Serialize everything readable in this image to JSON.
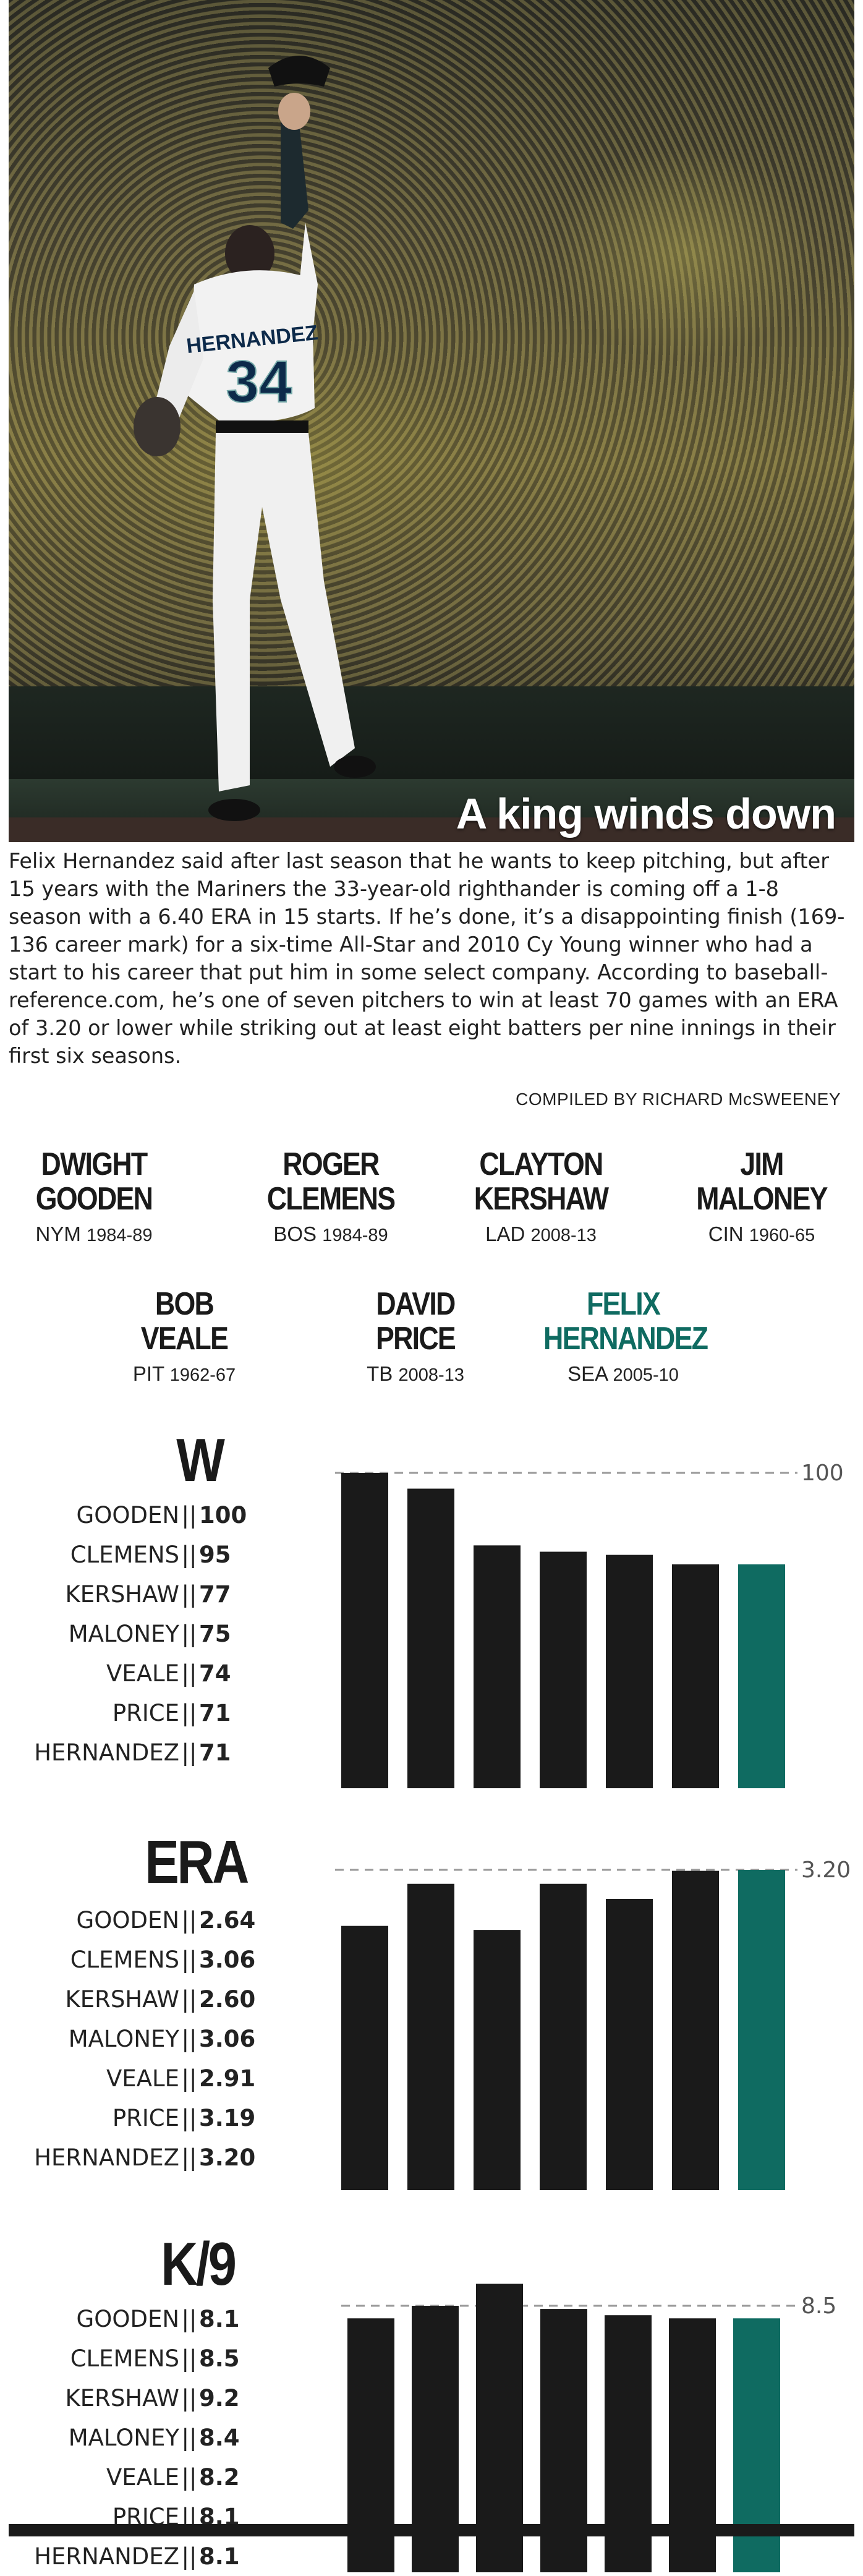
{
  "header": {
    "title": "A king winds down",
    "intro": "Felix Hernandez said after last season that he wants to keep pitching, but after 15 years with the Mariners the 33-year-old righthander is coming off a 1-8 season with a 6.40 ERA in 15 starts. If he’s done, it’s a disappointing finish (169-136 career mark) for a six-time All-Star and 2010 Cy Young winner who had a start to his career that put him in some select company. According to baseball-reference.com, he’s one of seven pitchers to win at least 70 games with an ERA of 3.20 or lower while striking out at least eight batters per nine innings in their first six seasons.",
    "credit": "COMPILED BY RICHARD McSWEENEY",
    "photo_jersey_name": "HERNANDEZ",
    "photo_jersey_number": "34"
  },
  "pitchers": [
    {
      "first": "DWIGHT",
      "last": "GOODEN",
      "team": "NYM",
      "years": "1984-89"
    },
    {
      "first": "ROGER",
      "last": "CLEMENS",
      "team": "BOS",
      "years": "1984-89"
    },
    {
      "first": "CLAYTON",
      "last": "KERSHAW",
      "team": "LAD",
      "years": "2008-13"
    },
    {
      "first": "JIM",
      "last": "MALONEY",
      "team": "CIN",
      "years": "1960-65"
    },
    {
      "first": "BOB",
      "last": "VEALE",
      "team": "PIT",
      "years": "1962-67"
    },
    {
      "first": "DAVID",
      "last": "PRICE",
      "team": "TB",
      "years": "2008-13"
    },
    {
      "first": "FELIX",
      "last": "HERNANDEZ",
      "team": "SEA",
      "years": "2005-10",
      "highlight": true
    }
  ],
  "colors": {
    "bar": "#1a1a1a",
    "highlight": "#0f6b61",
    "reference_line": "#999999"
  },
  "chart_data": [
    {
      "type": "bar",
      "title": "W",
      "categories": [
        "GOODEN",
        "CLEMENS",
        "KERSHAW",
        "MALONEY",
        "VEALE",
        "PRICE",
        "HERNANDEZ"
      ],
      "values": [
        100,
        95,
        77,
        75,
        74,
        71,
        71
      ],
      "value_labels": [
        "100",
        "95",
        "77",
        "75",
        "74",
        "71",
        "71"
      ],
      "reference_value": 100,
      "reference_label": "100",
      "ylim": [
        0,
        100
      ],
      "highlight_index": 6
    },
    {
      "type": "bar",
      "title": "ERA",
      "categories": [
        "GOODEN",
        "CLEMENS",
        "KERSHAW",
        "MALONEY",
        "VEALE",
        "PRICE",
        "HERNANDEZ"
      ],
      "values": [
        2.64,
        3.06,
        2.6,
        3.06,
        2.91,
        3.19,
        3.2
      ],
      "value_labels": [
        "2.64",
        "3.06",
        "2.60",
        "3.06",
        "2.91",
        "3.19",
        "3.20"
      ],
      "reference_value": 3.2,
      "reference_label": "3.20",
      "ylim": [
        0,
        3.2
      ],
      "highlight_index": 6
    },
    {
      "type": "bar",
      "title": "K/9",
      "categories": [
        "GOODEN",
        "CLEMENS",
        "KERSHAW",
        "MALONEY",
        "VEALE",
        "PRICE",
        "HERNANDEZ"
      ],
      "values": [
        8.1,
        8.5,
        9.2,
        8.4,
        8.2,
        8.1,
        8.1
      ],
      "value_labels": [
        "8.1",
        "8.5",
        "9.2",
        "8.4",
        "8.2",
        "8.1",
        "8.1"
      ],
      "reference_value": 8.5,
      "reference_label": "8.5",
      "ylim": [
        0,
        8.5
      ],
      "highlight_index": 6
    }
  ]
}
